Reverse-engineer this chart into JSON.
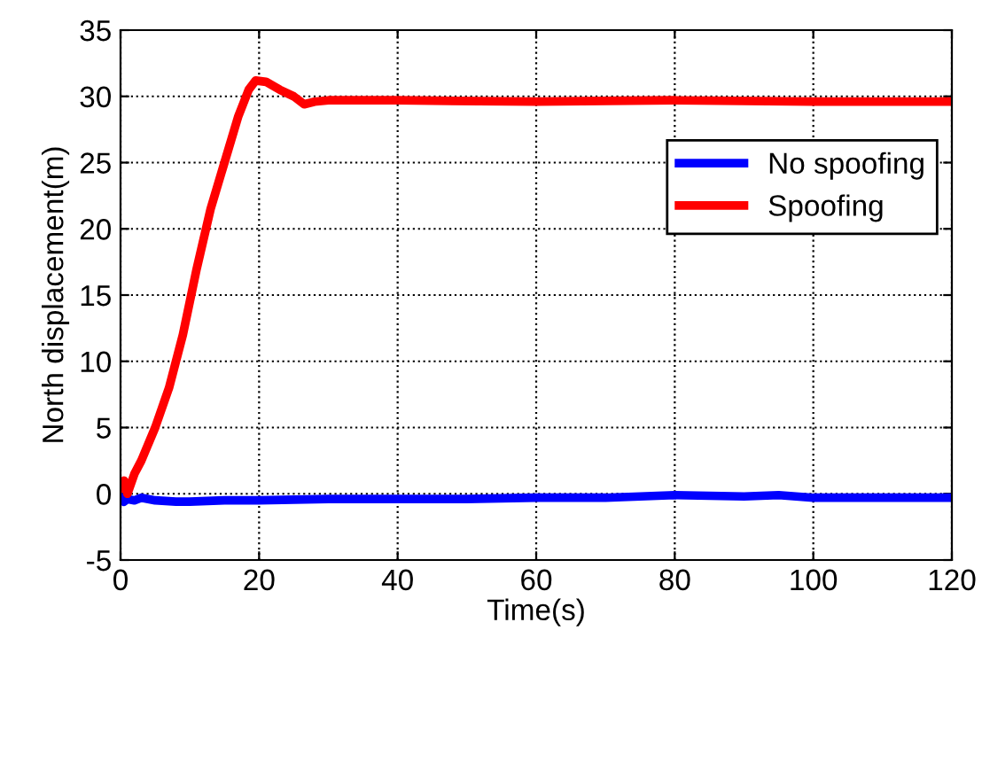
{
  "chart_data": {
    "type": "line",
    "xlabel": "Time(s)",
    "ylabel": "North displacement(m)",
    "xlim": [
      0,
      120
    ],
    "ylim": [
      -5,
      35
    ],
    "xticks": [
      0,
      20,
      40,
      60,
      80,
      100,
      120
    ],
    "yticks": [
      -5,
      0,
      5,
      10,
      15,
      20,
      25,
      30,
      35
    ],
    "grid": true,
    "legend": "top right",
    "line_style": "solid",
    "marker": "none",
    "series": [
      {
        "name": "No spoofing",
        "color": "#0000ff",
        "x": [
          0,
          0.5,
          1,
          2,
          3,
          5,
          8,
          10,
          15,
          20,
          30,
          40,
          50,
          60,
          70,
          80,
          90,
          95,
          100,
          110,
          120
        ],
        "values": [
          -0.3,
          -0.6,
          -0.4,
          -0.5,
          -0.3,
          -0.5,
          -0.6,
          -0.6,
          -0.5,
          -0.5,
          -0.4,
          -0.4,
          -0.4,
          -0.3,
          -0.3,
          -0.1,
          -0.2,
          -0.1,
          -0.3,
          -0.3,
          -0.3
        ]
      },
      {
        "name": "Spoofing",
        "color": "#ff0000",
        "x": [
          0,
          0.5,
          1,
          2,
          3,
          5,
          7,
          9,
          11,
          13,
          15,
          17,
          18.5,
          19.5,
          21,
          23,
          25,
          26.5,
          28,
          30,
          40,
          60,
          80,
          100,
          120
        ],
        "values": [
          0.5,
          1,
          0,
          1.5,
          2.5,
          5,
          8,
          12,
          17,
          21.5,
          25,
          28.5,
          30.5,
          31.2,
          31.1,
          30.5,
          30,
          29.4,
          29.6,
          29.7,
          29.7,
          29.6,
          29.7,
          29.6,
          29.6
        ]
      }
    ]
  }
}
